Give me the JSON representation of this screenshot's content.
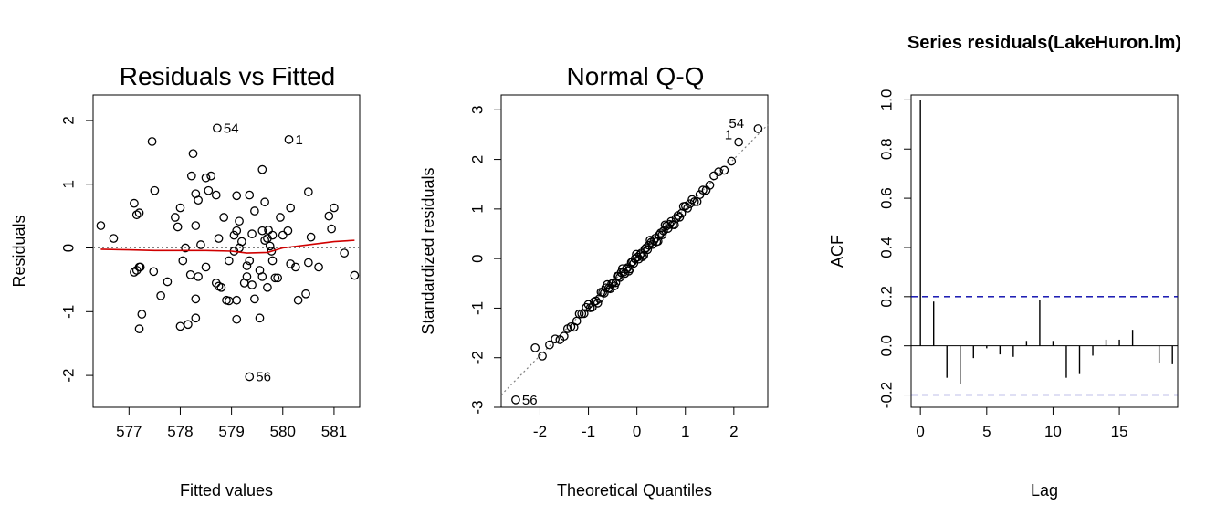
{
  "colors": {
    "point": "#000000",
    "smoother": "#d00000",
    "refline": "#808080",
    "ci": "#0000aa"
  },
  "chart_data": [
    {
      "type": "scatter",
      "title": "Residuals vs Fitted",
      "xlabel": "Fitted values",
      "ylabel": "Residuals",
      "xlim": [
        576.3,
        581.5
      ],
      "ylim": [
        -2.5,
        2.4
      ],
      "xticks": [
        577,
        578,
        579,
        580,
        581
      ],
      "yticks": [
        -2,
        -1,
        0,
        1,
        2
      ],
      "points": [
        [
          576.45,
          0.35
        ],
        [
          576.7,
          0.15
        ],
        [
          577.1,
          0.7
        ],
        [
          577.15,
          0.52
        ],
        [
          577.2,
          0.55
        ],
        [
          577.45,
          1.67
        ],
        [
          577.5,
          0.9
        ],
        [
          577.1,
          -0.38
        ],
        [
          577.15,
          -0.35
        ],
        [
          577.2,
          -0.3
        ],
        [
          577.22,
          -0.3
        ],
        [
          577.25,
          -1.04
        ],
        [
          577.2,
          -1.27
        ],
        [
          577.48,
          -0.37
        ],
        [
          577.62,
          -0.75
        ],
        [
          577.75,
          -0.53
        ],
        [
          577.9,
          0.48
        ],
        [
          577.95,
          0.33
        ],
        [
          578.0,
          0.63
        ],
        [
          578.05,
          -0.2
        ],
        [
          578.1,
          0.0
        ],
        [
          578.15,
          -1.2
        ],
        [
          578.0,
          -1.23
        ],
        [
          578.22,
          1.13
        ],
        [
          578.25,
          1.48
        ],
        [
          578.3,
          0.85
        ],
        [
          578.35,
          0.75
        ],
        [
          578.3,
          0.35
        ],
        [
          578.5,
          1.1
        ],
        [
          578.6,
          1.13
        ],
        [
          578.55,
          0.9
        ],
        [
          578.4,
          0.05
        ],
        [
          578.2,
          -0.42
        ],
        [
          578.35,
          -0.45
        ],
        [
          578.3,
          -0.8
        ],
        [
          578.3,
          -1.1
        ],
        [
          578.5,
          -0.3
        ],
        [
          578.7,
          -0.55
        ],
        [
          578.75,
          -0.6
        ],
        [
          578.8,
          -0.62
        ],
        [
          578.9,
          -0.82
        ],
        [
          578.95,
          -0.83
        ],
        [
          578.7,
          0.83
        ],
        [
          578.85,
          0.48
        ],
        [
          578.75,
          0.15
        ],
        [
          578.95,
          -0.2
        ],
        [
          579.1,
          0.82
        ],
        [
          579.05,
          0.2
        ],
        [
          579.1,
          0.27
        ],
        [
          579.15,
          0.42
        ],
        [
          579.2,
          0.1
        ],
        [
          579.15,
          0.0
        ],
        [
          579.05,
          -0.05
        ],
        [
          579.1,
          -0.82
        ],
        [
          579.25,
          -0.55
        ],
        [
          579.1,
          -1.12
        ],
        [
          579.3,
          -0.28
        ],
        [
          579.35,
          -0.2
        ],
        [
          579.3,
          -0.45
        ],
        [
          579.35,
          0.83
        ],
        [
          579.45,
          0.58
        ],
        [
          579.4,
          0.22
        ],
        [
          579.4,
          -0.58
        ],
        [
          579.45,
          -0.8
        ],
        [
          579.55,
          -0.35
        ],
        [
          579.6,
          -0.45
        ],
        [
          579.55,
          -1.1
        ],
        [
          579.6,
          1.23
        ],
        [
          579.65,
          0.72
        ],
        [
          579.6,
          0.27
        ],
        [
          579.65,
          0.12
        ],
        [
          579.7,
          0.15
        ],
        [
          579.72,
          0.28
        ],
        [
          579.75,
          0.03
        ],
        [
          579.8,
          0.2
        ],
        [
          579.78,
          -0.05
        ],
        [
          579.7,
          -0.62
        ],
        [
          579.8,
          -0.2
        ],
        [
          579.85,
          -0.47
        ],
        [
          579.9,
          -0.47
        ],
        [
          579.95,
          0.48
        ],
        [
          580.0,
          0.2
        ],
        [
          580.15,
          0.63
        ],
        [
          580.1,
          0.27
        ],
        [
          580.15,
          -0.25
        ],
        [
          580.25,
          -0.3
        ],
        [
          580.3,
          -0.82
        ],
        [
          580.5,
          0.88
        ],
        [
          580.45,
          -0.72
        ],
        [
          580.5,
          -0.23
        ],
        [
          580.55,
          0.17
        ],
        [
          580.7,
          -0.3
        ],
        [
          580.9,
          0.5
        ],
        [
          581.0,
          0.63
        ],
        [
          580.95,
          0.3
        ],
        [
          581.2,
          -0.08
        ],
        [
          581.4,
          -0.43
        ],
        [
          578.72,
          1.88
        ],
        [
          580.12,
          1.7
        ],
        [
          579.35,
          -2.02
        ]
      ],
      "smoother": [
        [
          576.45,
          -0.02
        ],
        [
          577.0,
          -0.03
        ],
        [
          577.5,
          -0.04
        ],
        [
          578.0,
          -0.04
        ],
        [
          578.5,
          -0.04
        ],
        [
          579.0,
          -0.05
        ],
        [
          579.3,
          -0.08
        ],
        [
          579.7,
          -0.07
        ],
        [
          580.0,
          0.0
        ],
        [
          580.5,
          0.05
        ],
        [
          581.0,
          0.1
        ],
        [
          581.4,
          0.12
        ]
      ],
      "refline_y": 0,
      "labels": [
        {
          "text": "54",
          "x": 578.72,
          "y": 1.88
        },
        {
          "text": "1",
          "x": 580.12,
          "y": 1.7
        },
        {
          "text": "56",
          "x": 579.35,
          "y": -2.02
        }
      ]
    },
    {
      "type": "scatter",
      "title": "Normal Q-Q",
      "xlabel": "Theoretical Quantiles",
      "ylabel": "Standardized residuals",
      "xlim": [
        -2.8,
        2.7
      ],
      "ylim": [
        -3.0,
        3.3
      ],
      "xticks": [
        -2,
        -1,
        0,
        1,
        2
      ],
      "yticks": [
        -3,
        -2,
        -1,
        0,
        1,
        2,
        3
      ],
      "n_points": 98,
      "first_points": [
        [
          -2.5,
          -2.85
        ],
        [
          -2.1,
          -1.8
        ]
      ],
      "last_points": [
        [
          2.1,
          2.35
        ],
        [
          2.5,
          2.62
        ]
      ],
      "refline": [
        [
          -2.8,
          -2.75
        ],
        [
          2.7,
          2.7
        ]
      ],
      "labels": [
        {
          "text": "56",
          "x": -2.5,
          "y": -2.85
        },
        {
          "text": "1",
          "x": 2.1,
          "y": 2.35
        },
        {
          "text": "54",
          "x": 2.5,
          "y": 2.62
        }
      ]
    },
    {
      "type": "bar",
      "title": "Series  residuals(LakeHuron.lm)",
      "xlabel": "Lag",
      "ylabel": "ACF",
      "xlim": [
        -0.7,
        19.4
      ],
      "ylim": [
        -0.25,
        1.02
      ],
      "xticks": [
        0,
        5,
        10,
        15
      ],
      "yticks": [
        -0.2,
        0.0,
        0.2,
        0.4,
        0.6,
        0.8,
        1.0
      ],
      "lags": [
        0,
        1,
        2,
        3,
        4,
        5,
        6,
        7,
        8,
        9,
        10,
        11,
        12,
        13,
        14,
        15,
        16,
        17,
        18,
        19
      ],
      "acf": [
        1.0,
        0.18,
        -0.13,
        -0.155,
        -0.05,
        -0.01,
        -0.035,
        -0.045,
        0.02,
        0.185,
        0.02,
        -0.13,
        -0.115,
        -0.04,
        0.025,
        0.025,
        0.065,
        0.0,
        -0.07,
        -0.075
      ],
      "ci": 0.2
    }
  ]
}
